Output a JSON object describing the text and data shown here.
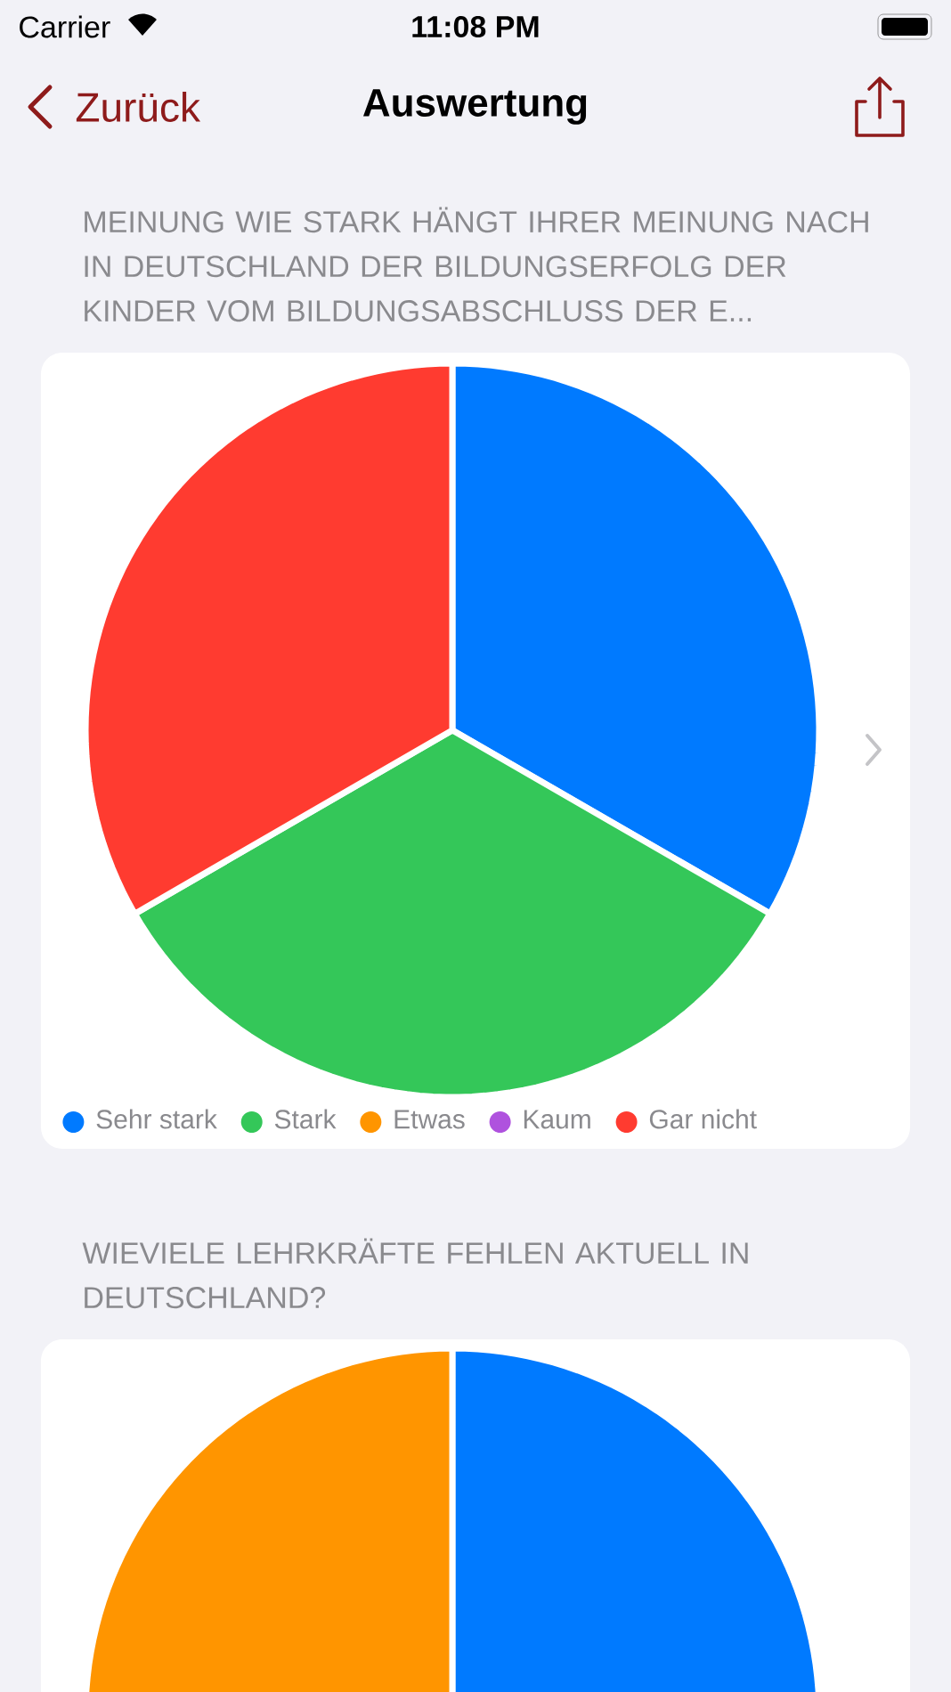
{
  "chart_data": [
    {
      "type": "pie",
      "title": "MEINUNG WIE STARK HÄNGT IHRER MEINUNG NACH IN DEUTSCHLAND DER BILDUNGSERFOLG DER KINDER VOM BILDUNGSABSCHLUSS DER E...",
      "categories": [
        "Sehr stark",
        "Stark",
        "Etwas",
        "Kaum",
        "Gar nicht"
      ],
      "values": [
        33.33,
        33.33,
        0,
        0,
        33.34
      ],
      "colors": [
        "#007aff",
        "#34c759",
        "#ff9500",
        "#af52de",
        "#ff3b30"
      ],
      "legend": "bottom",
      "annotations": [
        "Carrier",
        "11:08 PM",
        "Zurück",
        "Auswertung"
      ]
    },
    {
      "type": "pie",
      "title": "WIEVIELE LEHRKRÄFTE FEHLEN AKTUELL IN DEUTSCHLAND?",
      "categories": [
        null,
        null
      ],
      "values": [
        50,
        50
      ],
      "colors": [
        "#007aff",
        "#ff9500"
      ]
    }
  ]
}
